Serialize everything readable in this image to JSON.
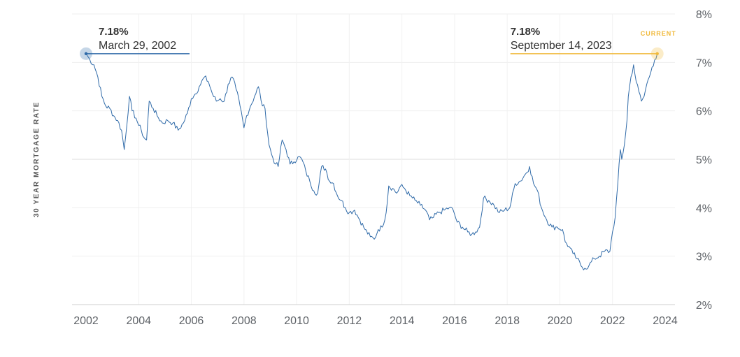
{
  "chart_data": {
    "type": "line",
    "ylabel": "30 YEAR MORTGAGE RATE",
    "xlim": [
      2002,
      2024
    ],
    "ylim": [
      2,
      8
    ],
    "x_ticks": [
      "2002",
      "2004",
      "2006",
      "2008",
      "2010",
      "2012",
      "2014",
      "2016",
      "2018",
      "2020",
      "2022",
      "2024"
    ],
    "y_ticks": [
      "2%",
      "3%",
      "4%",
      "5%",
      "6%",
      "7%",
      "8%"
    ],
    "grid": true,
    "series": [
      {
        "color": "#2f6aa8",
        "x": [
          2002.0,
          2002.15,
          2002.3,
          2002.45,
          2002.6,
          2002.75,
          2002.9,
          2003.05,
          2003.2,
          2003.35,
          2003.45,
          2003.5,
          2003.65,
          2003.75,
          2003.9,
          2004.0,
          2004.1,
          2004.2,
          2004.3,
          2004.4,
          2004.55,
          2004.7,
          2004.9,
          2005.1,
          2005.3,
          2005.5,
          2005.7,
          2005.85,
          2006.0,
          2006.15,
          2006.3,
          2006.5,
          2006.65,
          2006.8,
          2006.95,
          2007.1,
          2007.25,
          2007.4,
          2007.55,
          2007.7,
          2007.85,
          2008.0,
          2008.1,
          2008.25,
          2008.4,
          2008.55,
          2008.7,
          2008.8,
          2008.95,
          2009.05,
          2009.2,
          2009.3,
          2009.45,
          2009.6,
          2009.75,
          2009.9,
          2010.05,
          2010.2,
          2010.35,
          2010.5,
          2010.65,
          2010.8,
          2010.95,
          2011.1,
          2011.25,
          2011.4,
          2011.55,
          2011.7,
          2011.85,
          2012.0,
          2012.2,
          2012.4,
          2012.6,
          2012.8,
          2012.95,
          2013.1,
          2013.25,
          2013.4,
          2013.5,
          2013.65,
          2013.8,
          2013.95,
          2014.1,
          2014.3,
          2014.5,
          2014.7,
          2014.9,
          2015.05,
          2015.2,
          2015.4,
          2015.6,
          2015.8,
          2015.95,
          2016.1,
          2016.3,
          2016.5,
          2016.65,
          2016.8,
          2016.95,
          2017.1,
          2017.3,
          2017.5,
          2017.7,
          2017.9,
          2018.1,
          2018.3,
          2018.5,
          2018.7,
          2018.85,
          2019.0,
          2019.15,
          2019.3,
          2019.5,
          2019.7,
          2019.9,
          2020.1,
          2020.2,
          2020.35,
          2020.5,
          2020.65,
          2020.8,
          2020.95,
          2021.1,
          2021.3,
          2021.5,
          2021.7,
          2021.9,
          2022.0,
          2022.1,
          2022.2,
          2022.3,
          2022.35,
          2022.45,
          2022.55,
          2022.6,
          2022.7,
          2022.8,
          2022.9,
          2023.0,
          2023.1,
          2023.2,
          2023.3,
          2023.4,
          2023.5,
          2023.6,
          2023.7
        ],
        "y": [
          7.18,
          7.05,
          6.95,
          6.7,
          6.3,
          6.1,
          6.05,
          5.9,
          5.8,
          5.6,
          5.2,
          5.45,
          6.3,
          6.0,
          5.85,
          5.7,
          5.6,
          5.45,
          5.4,
          6.2,
          6.05,
          5.9,
          5.75,
          5.8,
          5.75,
          5.6,
          5.75,
          5.95,
          6.25,
          6.35,
          6.5,
          6.7,
          6.6,
          6.35,
          6.2,
          6.25,
          6.2,
          6.55,
          6.7,
          6.45,
          6.1,
          5.65,
          5.9,
          6.1,
          6.3,
          6.5,
          6.1,
          6.05,
          5.3,
          5.1,
          4.9,
          4.85,
          5.4,
          5.2,
          4.9,
          4.95,
          5.05,
          5.0,
          4.75,
          4.55,
          4.35,
          4.3,
          4.85,
          4.8,
          4.55,
          4.5,
          4.25,
          4.15,
          4.0,
          3.9,
          3.95,
          3.75,
          3.55,
          3.4,
          3.35,
          3.55,
          3.6,
          3.9,
          4.45,
          4.4,
          4.3,
          4.45,
          4.4,
          4.25,
          4.15,
          4.05,
          3.95,
          3.75,
          3.8,
          3.9,
          3.95,
          4.0,
          3.95,
          3.7,
          3.6,
          3.5,
          3.45,
          3.5,
          3.6,
          4.2,
          4.15,
          4.05,
          3.9,
          3.95,
          4.0,
          4.5,
          4.55,
          4.7,
          4.85,
          4.5,
          4.35,
          4.0,
          3.75,
          3.6,
          3.6,
          3.55,
          3.3,
          3.2,
          3.05,
          2.95,
          2.8,
          2.75,
          2.8,
          2.95,
          3.0,
          3.1,
          3.1,
          3.5,
          3.8,
          4.5,
          5.2,
          5.0,
          5.3,
          5.8,
          6.3,
          6.7,
          6.95,
          6.6,
          6.4,
          6.2,
          6.3,
          6.55,
          6.7,
          6.9,
          7.05,
          7.18
        ],
        "noise": 0.06
      }
    ],
    "annotations": [
      {
        "x": 2002.0,
        "y": 7.18,
        "value": "7.18%",
        "date": "March 29, 2002",
        "color": "#2f6aa8",
        "align": "left"
      },
      {
        "x": 2023.7,
        "y": 7.18,
        "value": "7.18%",
        "date": "September 14, 2023",
        "tag": "CURRENT",
        "color": "#f0b93a",
        "align": "right"
      }
    ]
  }
}
